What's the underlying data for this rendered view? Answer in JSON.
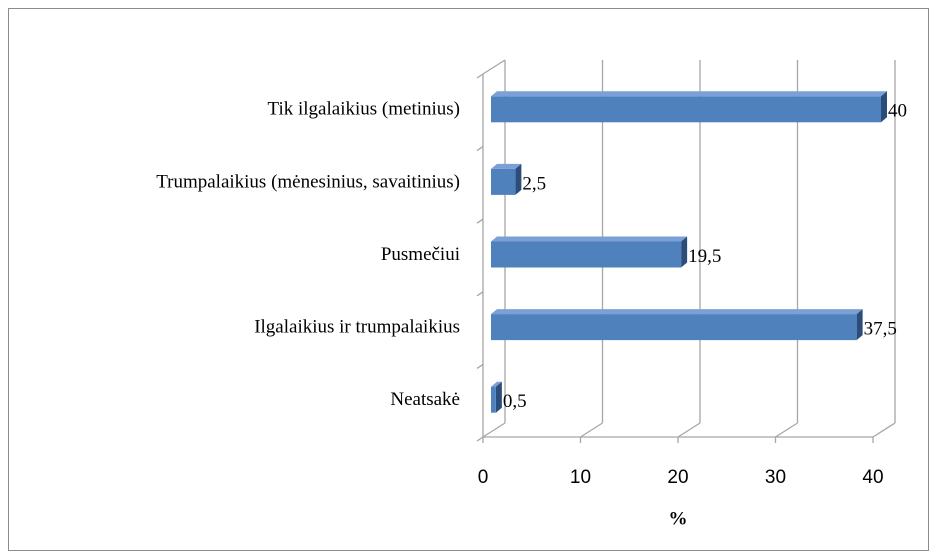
{
  "chart_data": {
    "type": "bar",
    "orientation": "horizontal",
    "categories": [
      "Tik ilgalaikius (metinius)",
      "Trumpalaikius (mėnesinius, savaitinius)",
      "Pusmečiui",
      "Ilgalaikius ir trumpalaikius",
      "Neatsakė"
    ],
    "values": [
      40,
      2.5,
      19.5,
      37.5,
      0.5
    ],
    "value_labels": [
      "40",
      "2,5",
      "19,5",
      "37,5",
      "0,5"
    ],
    "color": "#4f81bd",
    "xlim": [
      0,
      40
    ],
    "xticks": [
      0,
      10,
      20,
      30,
      40
    ],
    "x_label": "%",
    "grid": true
  }
}
